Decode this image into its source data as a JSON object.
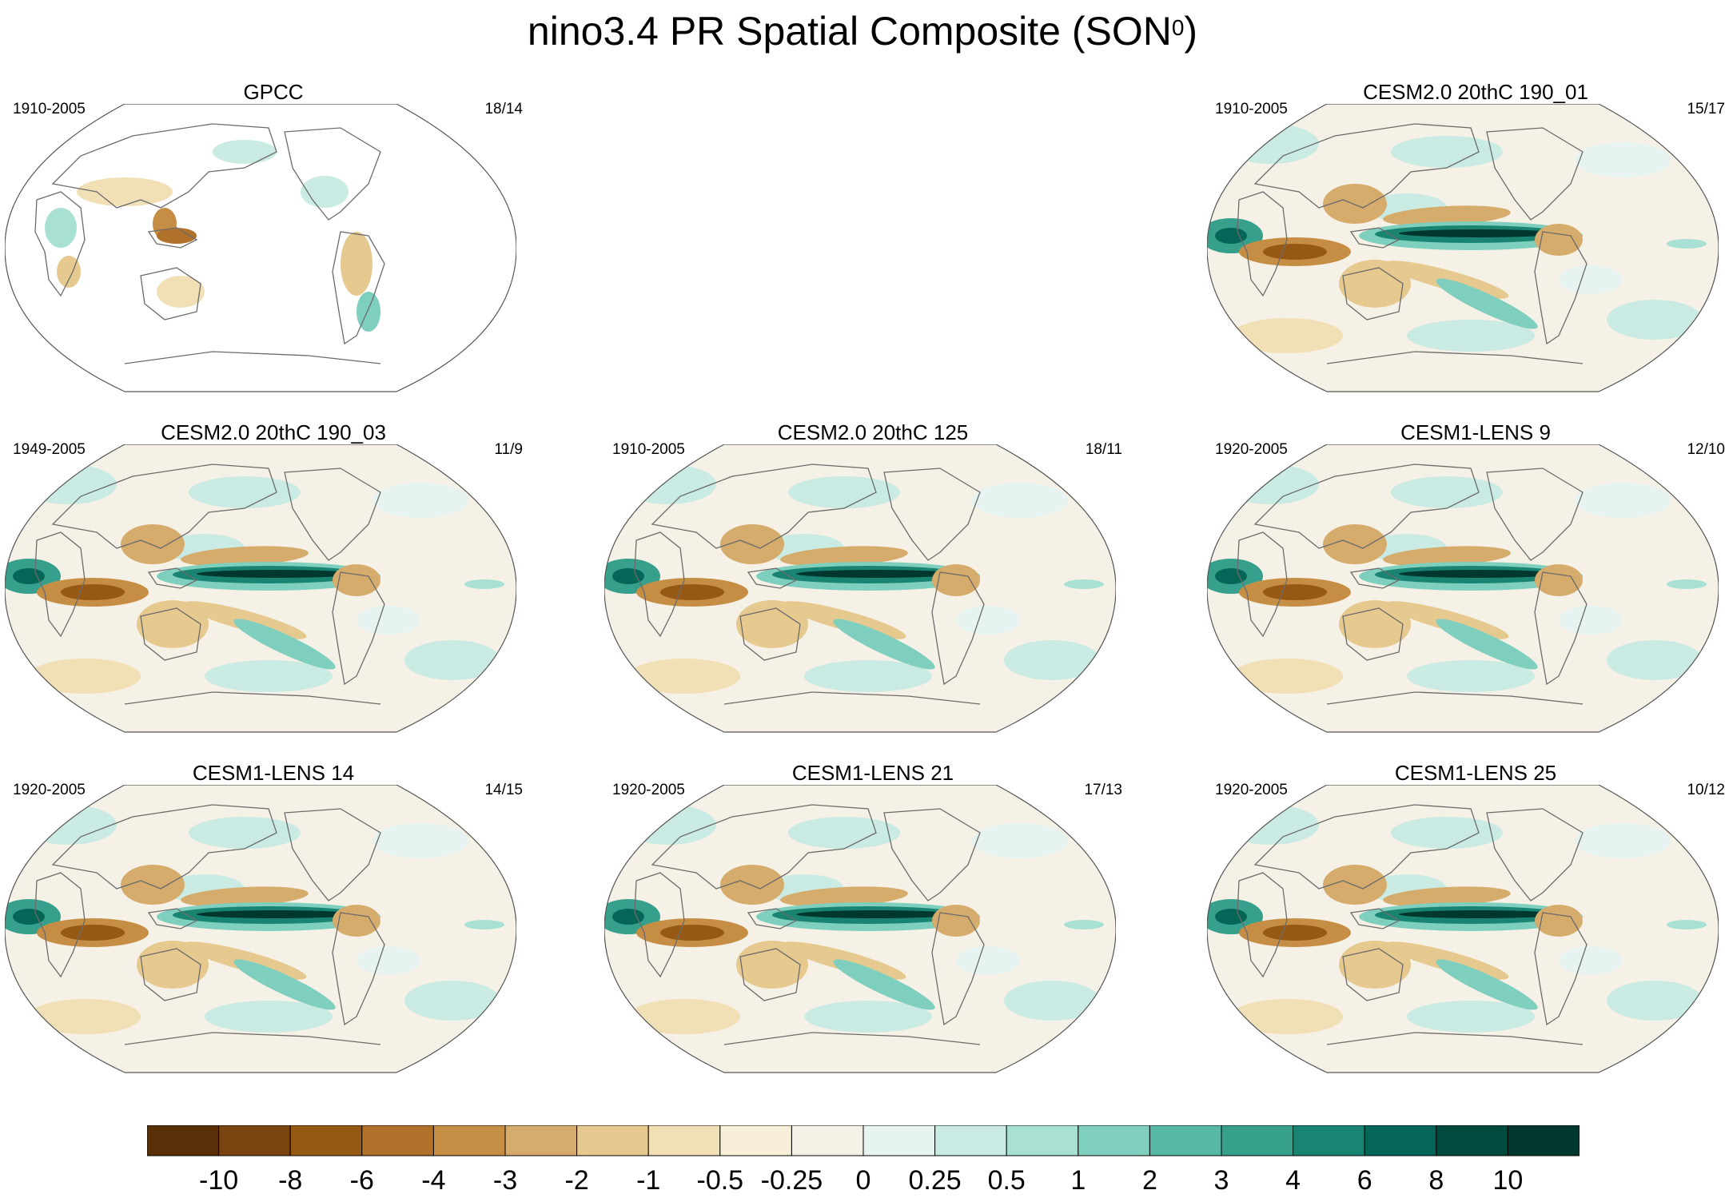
{
  "title": {
    "main": "nino3.4 PR Spatial Composite (SON",
    "sup": "0",
    "end": ")"
  },
  "colors": {
    "ocean_base": "#f6f1e6",
    "coast": "#6b6b6b",
    "outline": "#555555",
    "brown_dark": "#5a3008",
    "teal_dark": "#003830"
  },
  "panels": [
    {
      "id": "gpcc",
      "title": "GPCC",
      "years": "1910-2005",
      "count": "18/14",
      "land_only": true
    },
    {
      "id": "c2_190_01",
      "title": "CESM2.0 20thC 190_01",
      "years": "1910-2005",
      "count": "15/17",
      "land_only": false
    },
    {
      "id": "c2_190_03",
      "title": "CESM2.0 20thC 190_03",
      "years": "1949-2005",
      "count": "11/9",
      "land_only": false
    },
    {
      "id": "c2_125",
      "title": "CESM2.0 20thC 125",
      "years": "1910-2005",
      "count": "18/11",
      "land_only": false
    },
    {
      "id": "lens9",
      "title": "CESM1-LENS 9",
      "years": "1920-2005",
      "count": "12/10",
      "land_only": false
    },
    {
      "id": "lens14",
      "title": "CESM1-LENS 14",
      "years": "1920-2005",
      "count": "14/15",
      "land_only": false
    },
    {
      "id": "lens21",
      "title": "CESM1-LENS 21",
      "years": "1920-2005",
      "count": "17/13",
      "land_only": false
    },
    {
      "id": "lens25",
      "title": "CESM1-LENS 25",
      "years": "1920-2005",
      "count": "10/12",
      "land_only": false
    }
  ],
  "colorbar": {
    "colors": [
      "#5a3008",
      "#7a4410",
      "#965815",
      "#b0722a",
      "#c68e45",
      "#d6ac6c",
      "#e6c98f",
      "#f1e0b6",
      "#f8efd8",
      "#f6f1e6",
      "#e6f3f0",
      "#c9ebe3",
      "#a8e0d4",
      "#7fcfbf",
      "#58b8a6",
      "#36a08c",
      "#1a8472",
      "#056657",
      "#004a3e",
      "#003830"
    ],
    "tick_labels": [
      "-10",
      "-8",
      "-6",
      "-4",
      "-3",
      "-2",
      "-1",
      "-0.5",
      "-0.25",
      "0",
      "0.25",
      "0.5",
      "1",
      "2",
      "3",
      "4",
      "6",
      "8",
      "10"
    ]
  }
}
